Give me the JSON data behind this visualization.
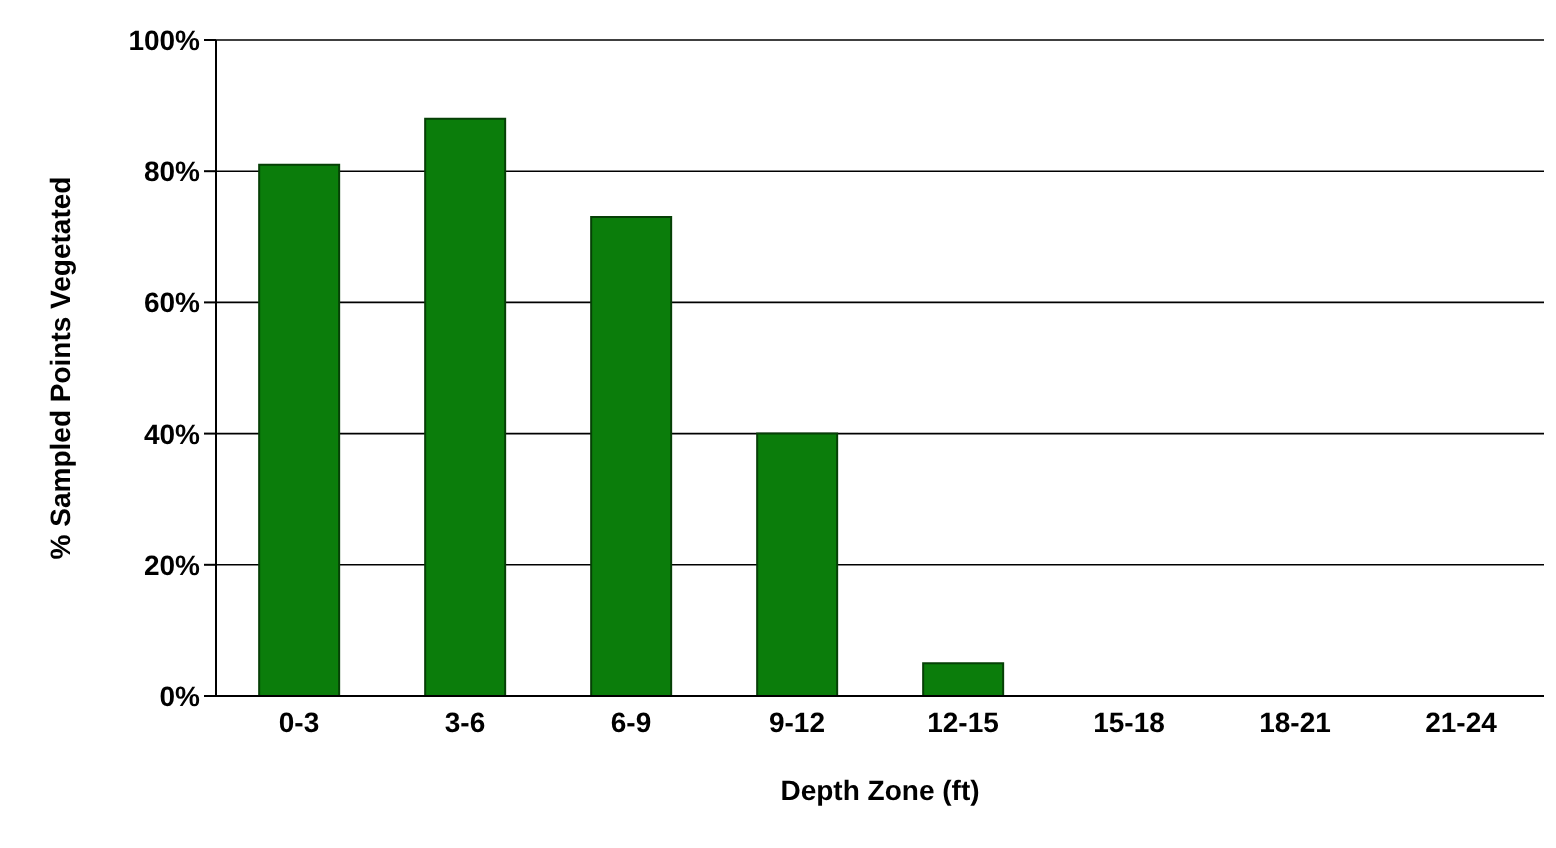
{
  "chart_data": {
    "type": "bar",
    "xlabel": "Depth Zone (ft)",
    "ylabel": "% Sampled Points Vegetated",
    "categories": [
      "0-3",
      "3-6",
      "6-9",
      "9-12",
      "12-15",
      "15-18",
      "18-21",
      "21-24"
    ],
    "values": [
      81,
      88,
      73,
      40,
      5,
      0,
      0,
      0
    ],
    "color": "#0b7d0b",
    "ylim": [
      0,
      100
    ],
    "yticks": [
      {
        "value": 0,
        "label": "0%"
      },
      {
        "value": 20,
        "label": "20%"
      },
      {
        "value": 40,
        "label": "40%"
      },
      {
        "value": 60,
        "label": "60%"
      },
      {
        "value": 80,
        "label": "80%"
      },
      {
        "value": 100,
        "label": "100%"
      }
    ],
    "grid": "y"
  }
}
